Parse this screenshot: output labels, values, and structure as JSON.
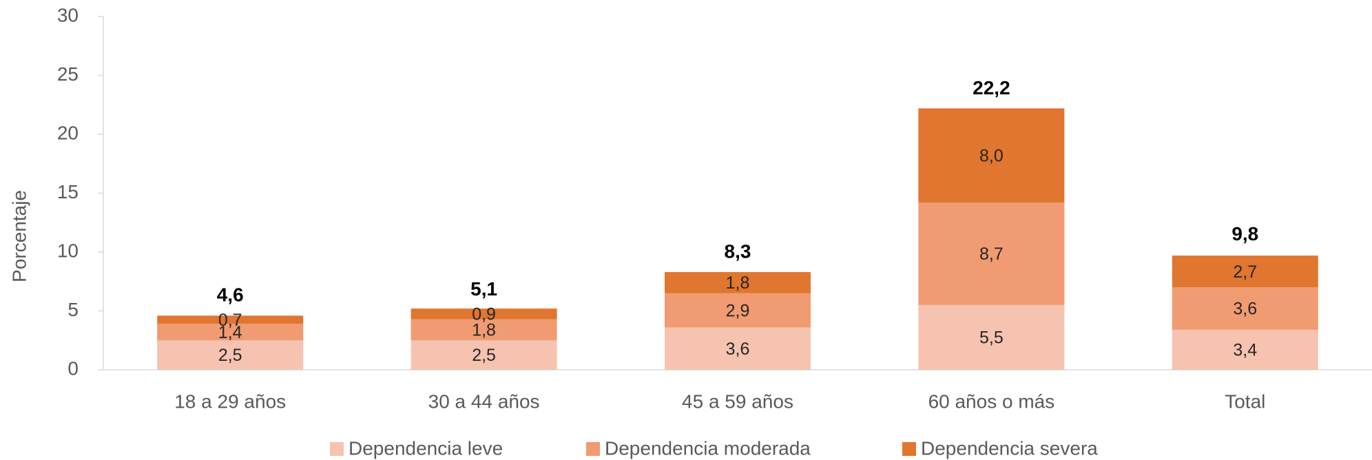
{
  "chart_data": {
    "type": "stacked_bar",
    "y_label": "Porcentaje",
    "categories": [
      "18 a 29 años",
      "30 a 44 años",
      "45 a 59 años",
      "60 años o más",
      "Total"
    ],
    "series": [
      {
        "name": "Dependencia leve",
        "color": "#F5C3AF",
        "values": [
          2.5,
          2.5,
          3.6,
          5.5,
          3.4
        ],
        "value_labels": [
          "2,5",
          "2,5",
          "3,6",
          "5,5",
          "3,4"
        ]
      },
      {
        "name": "Dependencia moderada",
        "color": "#F09B72",
        "values": [
          1.4,
          1.8,
          2.9,
          8.7,
          3.6
        ],
        "value_labels": [
          "1,4",
          "1,8",
          "2,9",
          "8,7",
          "3,6"
        ]
      },
      {
        "name": "Dependencia severa",
        "color": "#E0762F",
        "values": [
          0.7,
          0.9,
          1.8,
          8.0,
          2.7
        ],
        "value_labels": [
          "0,7",
          "0,9",
          "1,8",
          "8,0",
          "2,7"
        ]
      }
    ],
    "totals": [
      4.6,
      5.1,
      8.3,
      22.2,
      9.8
    ],
    "total_labels": [
      "4,6",
      "5,1",
      "8,3",
      "22,2",
      "9,8"
    ],
    "ylim": [
      0,
      30
    ],
    "yticks": [
      0,
      5,
      10,
      15,
      20,
      25,
      30
    ],
    "legend": "bottom"
  }
}
